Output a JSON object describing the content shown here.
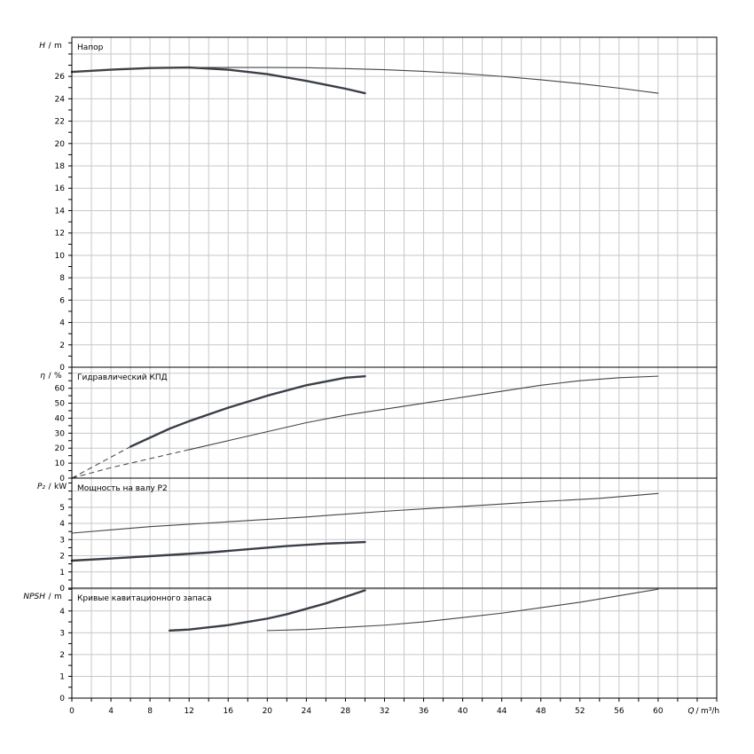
{
  "chart_data": [
    {
      "type": "line",
      "id": "head",
      "title": "Напор",
      "ylabel_var": "H",
      "ylabel_unit": "m",
      "ylim": [
        0,
        29.5
      ],
      "yticks": [
        0,
        2,
        4,
        6,
        8,
        10,
        12,
        14,
        16,
        18,
        20,
        22,
        24,
        26
      ],
      "grid": true,
      "series": [
        {
          "style": "bold",
          "points": [
            [
              0,
              26.4
            ],
            [
              4,
              26.6
            ],
            [
              8,
              26.75
            ],
            [
              12,
              26.8
            ],
            [
              16,
              26.6
            ],
            [
              20,
              26.2
            ],
            [
              24,
              25.6
            ],
            [
              28,
              24.9
            ],
            [
              30,
              24.5
            ]
          ]
        },
        {
          "style": "thin",
          "points": [
            [
              0,
              26.4
            ],
            [
              4,
              26.6
            ],
            [
              8,
              26.75
            ],
            [
              12,
              26.8
            ],
            [
              16,
              26.8
            ],
            [
              20,
              26.8
            ],
            [
              24,
              26.78
            ],
            [
              28,
              26.7
            ],
            [
              32,
              26.6
            ],
            [
              36,
              26.45
            ],
            [
              40,
              26.25
            ],
            [
              44,
              26.0
            ],
            [
              48,
              25.7
            ],
            [
              52,
              25.35
            ],
            [
              56,
              24.95
            ],
            [
              60,
              24.5
            ]
          ]
        }
      ]
    },
    {
      "type": "line",
      "id": "efficiency",
      "title": "Гидравлический КПД",
      "ylabel_var": "η",
      "ylabel_unit": "%",
      "ylim": [
        0,
        74
      ],
      "yticks": [
        0,
        10,
        20,
        30,
        40,
        50,
        60
      ],
      "grid": true,
      "series": [
        {
          "style": "bold-dashed-start",
          "dash_until": 6,
          "points": [
            [
              0,
              0
            ],
            [
              2,
              7
            ],
            [
              4,
              14
            ],
            [
              6,
              21
            ],
            [
              8,
              27
            ],
            [
              10,
              33
            ],
            [
              12,
              38
            ],
            [
              16,
              47
            ],
            [
              20,
              55
            ],
            [
              24,
              62
            ],
            [
              28,
              67
            ],
            [
              30,
              68
            ]
          ]
        },
        {
          "style": "thin-dashed-start",
          "dash_until": 12,
          "points": [
            [
              0,
              0
            ],
            [
              4,
              7
            ],
            [
              8,
              13
            ],
            [
              12,
              19
            ],
            [
              16,
              25
            ],
            [
              20,
              31
            ],
            [
              24,
              37
            ],
            [
              28,
              42
            ],
            [
              32,
              46
            ],
            [
              36,
              50
            ],
            [
              40,
              54
            ],
            [
              44,
              58
            ],
            [
              48,
              62
            ],
            [
              52,
              65
            ],
            [
              56,
              67
            ],
            [
              60,
              68
            ]
          ]
        }
      ]
    },
    {
      "type": "line",
      "id": "power",
      "title": "Мощность на валу P2",
      "ylabel_var": "P₂",
      "ylabel_unit": "kW",
      "ylim": [
        0,
        6.8
      ],
      "yticks": [
        0,
        1,
        2,
        3,
        4,
        5
      ],
      "grid": true,
      "series": [
        {
          "style": "bold",
          "points": [
            [
              0,
              1.7
            ],
            [
              6,
              1.9
            ],
            [
              10,
              2.05
            ],
            [
              14,
              2.2
            ],
            [
              18,
              2.4
            ],
            [
              22,
              2.6
            ],
            [
              26,
              2.75
            ],
            [
              30,
              2.85
            ]
          ]
        },
        {
          "style": "thin",
          "points": [
            [
              0,
              3.4
            ],
            [
              8,
              3.8
            ],
            [
              16,
              4.1
            ],
            [
              24,
              4.4
            ],
            [
              32,
              4.75
            ],
            [
              40,
              5.05
            ],
            [
              48,
              5.35
            ],
            [
              54,
              5.55
            ],
            [
              60,
              5.85
            ]
          ]
        }
      ]
    },
    {
      "type": "line",
      "id": "npsh",
      "title": "Кривые кавитационного запаса",
      "ylabel_var": "NPSH",
      "ylabel_unit": "m",
      "ylim": [
        0,
        5.05
      ],
      "yticks": [
        0,
        1,
        2,
        3,
        4
      ],
      "grid": true,
      "xticks": [
        0,
        4,
        8,
        12,
        16,
        20,
        24,
        28,
        32,
        36,
        40,
        44,
        48,
        52,
        56,
        60
      ],
      "xlim": [
        0,
        66
      ],
      "xlabel_var": "Q",
      "xlabel_unit": "m³/h",
      "series": [
        {
          "style": "bold",
          "points": [
            [
              10,
              3.1
            ],
            [
              12,
              3.15
            ],
            [
              14,
              3.25
            ],
            [
              16,
              3.35
            ],
            [
              18,
              3.5
            ],
            [
              20,
              3.65
            ],
            [
              22,
              3.85
            ],
            [
              24,
              4.1
            ],
            [
              26,
              4.35
            ],
            [
              28,
              4.65
            ],
            [
              30,
              4.95
            ]
          ]
        },
        {
          "style": "thin",
          "points": [
            [
              20,
              3.1
            ],
            [
              24,
              3.15
            ],
            [
              28,
              3.25
            ],
            [
              32,
              3.35
            ],
            [
              36,
              3.5
            ],
            [
              40,
              3.7
            ],
            [
              44,
              3.9
            ],
            [
              48,
              4.15
            ],
            [
              52,
              4.4
            ],
            [
              56,
              4.7
            ],
            [
              60,
              5.0
            ]
          ]
        }
      ]
    }
  ]
}
